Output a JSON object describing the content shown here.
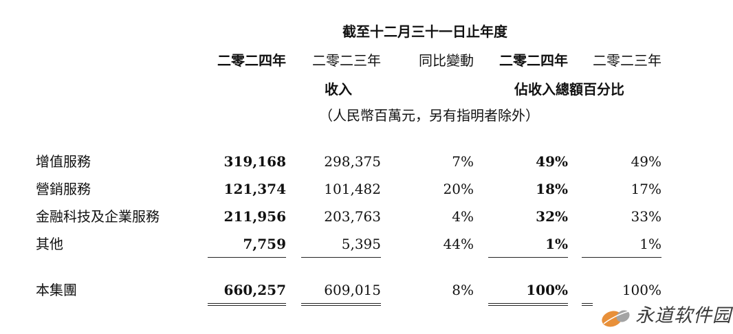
{
  "header": {
    "period": "截至十二月三十一日止年度",
    "years": [
      "二零二四年",
      "二零二三年",
      "同比變動",
      "二零二四年",
      "二零二三年"
    ],
    "revenue_label": "收入",
    "pct_label": "佔收入總額百分比",
    "unit_note": "（人民幣百萬元，另有指明者除外）"
  },
  "rows": [
    {
      "label": "增值服務",
      "y2024": "319,168",
      "y2023": "298,375",
      "yoy": "7%",
      "pct2024": "49%",
      "pct2023": "49%"
    },
    {
      "label": "營銷服務",
      "y2024": "121,374",
      "y2023": "101,482",
      "yoy": "20%",
      "pct2024": "18%",
      "pct2023": "17%"
    },
    {
      "label": "金融科技及企業服務",
      "y2024": "211,956",
      "y2023": "203,763",
      "yoy": "4%",
      "pct2024": "32%",
      "pct2023": "33%"
    },
    {
      "label": "其他",
      "y2024": "7,759",
      "y2023": "5,395",
      "yoy": "44%",
      "pct2024": "1%",
      "pct2023": "1%"
    }
  ],
  "total": {
    "label": "本集團",
    "y2024": "660,257",
    "y2023": "609,015",
    "yoy": "8%",
    "pct2024": "100%",
    "pct2023": "100%"
  },
  "watermark": {
    "text": "永道软件园",
    "icon": "leaf-logo-icon",
    "colors": [
      "#e8903a",
      "#9a9a9a"
    ]
  }
}
